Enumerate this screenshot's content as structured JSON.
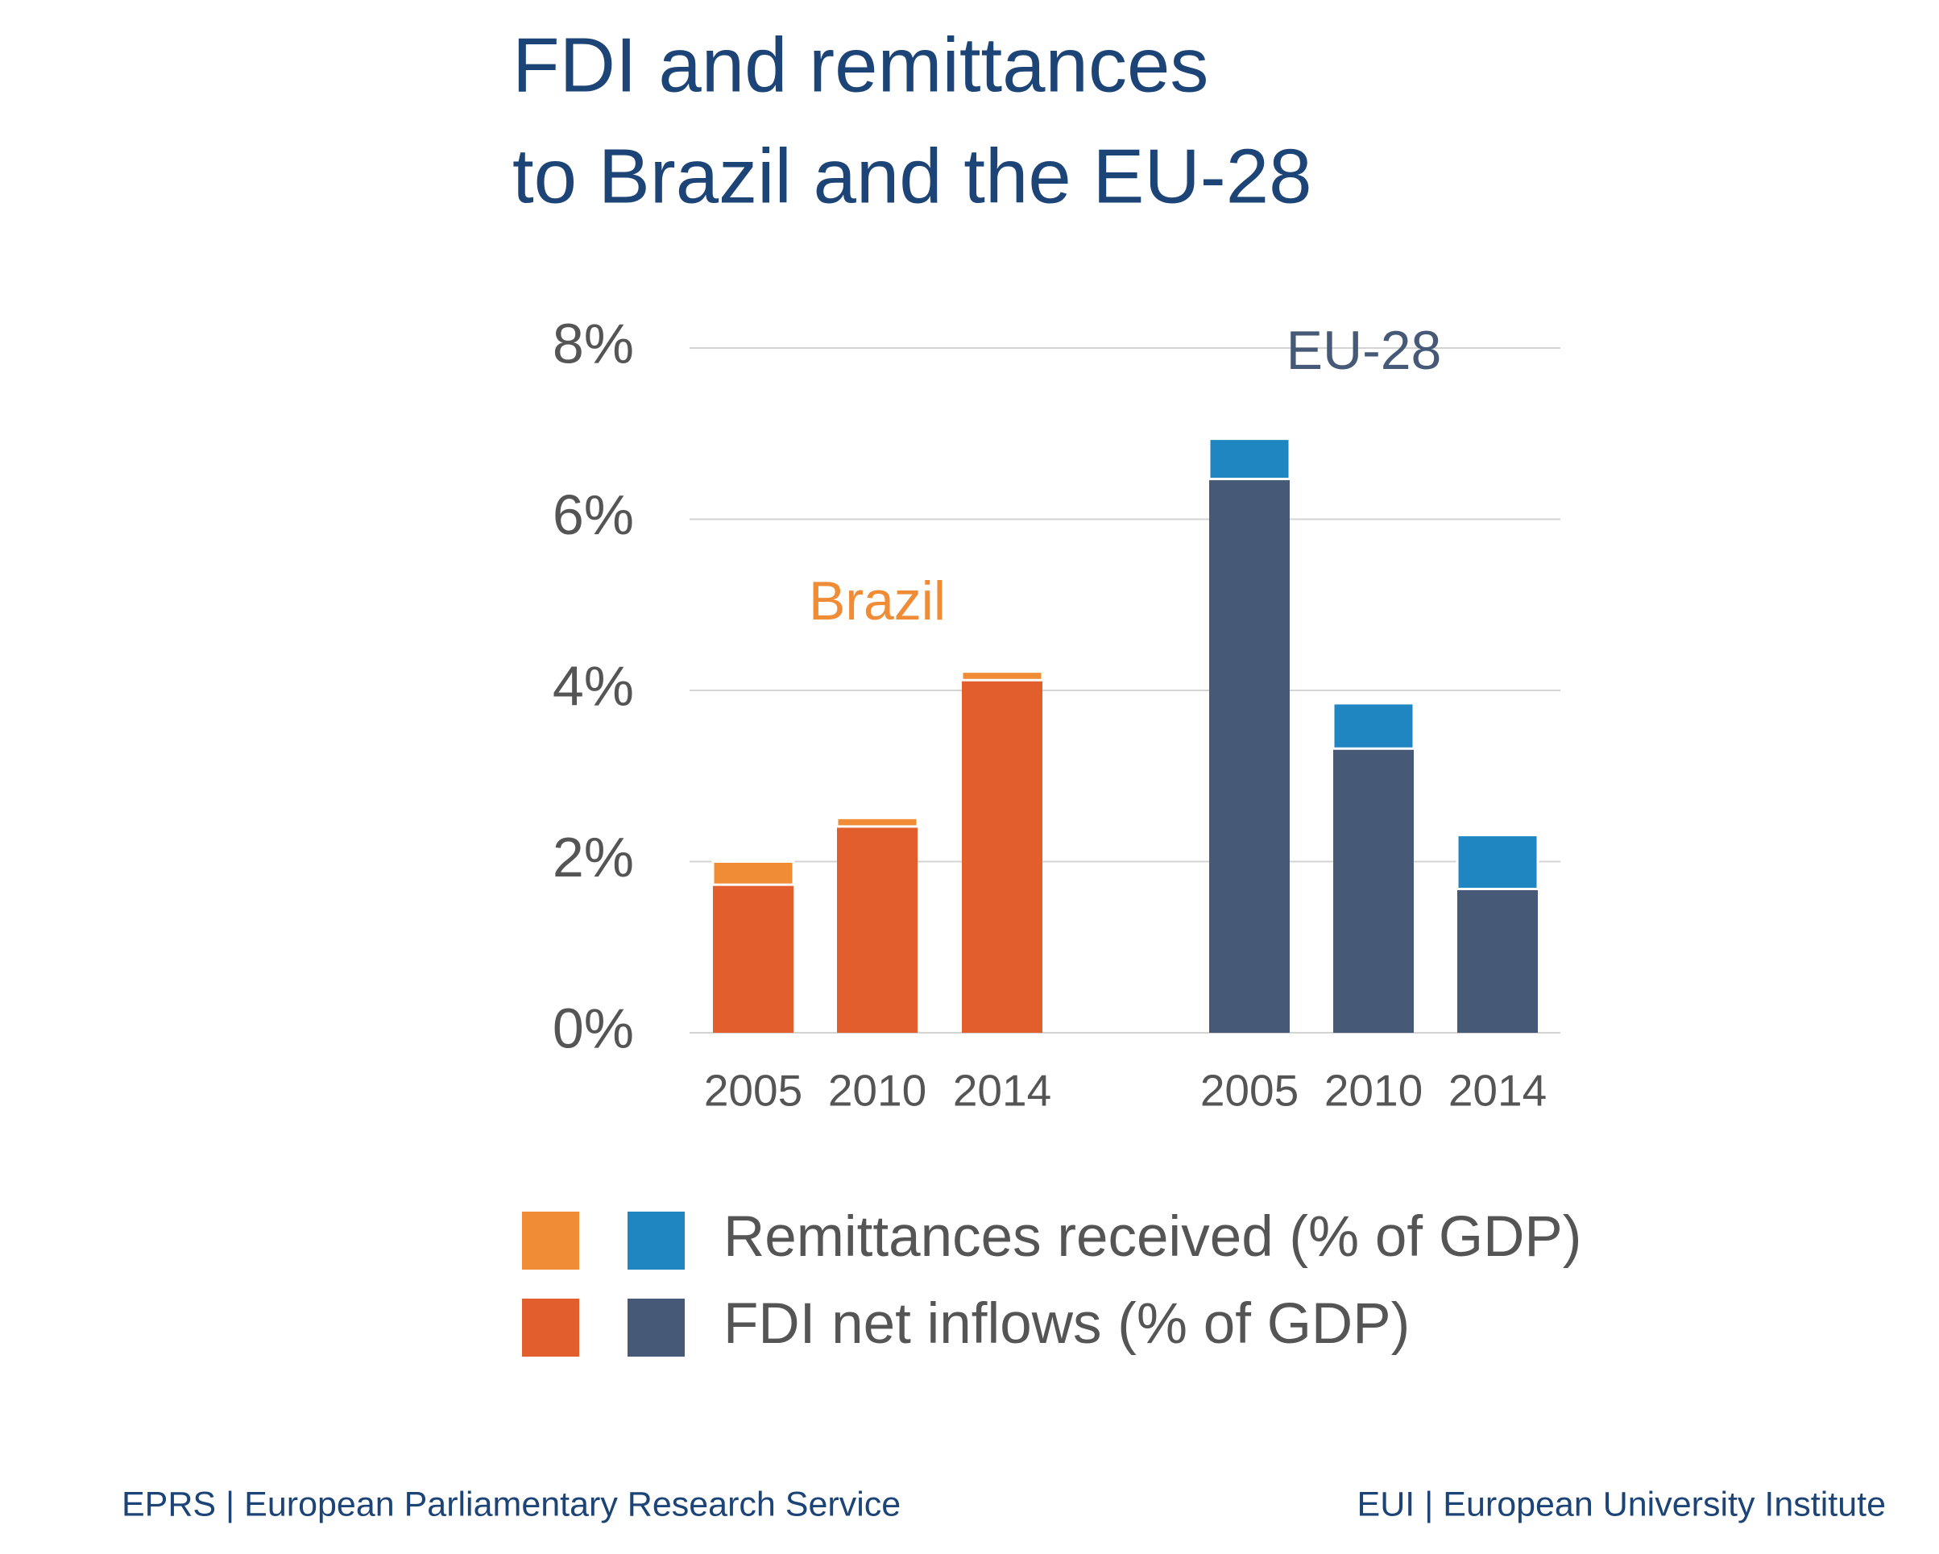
{
  "chart_data": {
    "type": "bar",
    "stacked": true,
    "title": [
      "FDI and remittances",
      "to Brazil and the EU-28"
    ],
    "ylim": [
      0,
      8
    ],
    "yticks": [
      {
        "value": 0,
        "label": "0%"
      },
      {
        "value": 2,
        "label": "2%"
      },
      {
        "value": 4,
        "label": "4%"
      },
      {
        "value": 6,
        "label": "6%"
      },
      {
        "value": 8,
        "label": "8%"
      }
    ],
    "grid": true,
    "series": [
      {
        "name": "FDI net inflows (% of GDP)"
      },
      {
        "name": "Remittances received (% of GDP)"
      }
    ],
    "groups": [
      {
        "name": "Brazil",
        "label_color": "#ef8c35",
        "categories": [
          "2005",
          "2010",
          "2014"
        ],
        "series": [
          {
            "color": "#e35e2d",
            "values": [
              1.73,
              2.41,
              4.12
            ]
          },
          {
            "color": "#ef8c35",
            "values": [
              0.27,
              0.1,
              0.1
            ]
          }
        ]
      },
      {
        "name": "EU-28",
        "label_color": "#465a78",
        "categories": [
          "2005",
          "2010",
          "2014"
        ],
        "series": [
          {
            "color": "#465a78",
            "values": [
              6.47,
              3.32,
              1.68
            ]
          },
          {
            "color": "#1f86c1",
            "values": [
              0.47,
              0.53,
              0.63
            ]
          }
        ]
      }
    ],
    "source_left": "EPRS | European Parliamentary Research Service",
    "source_right": "EUI | European University Institute"
  }
}
